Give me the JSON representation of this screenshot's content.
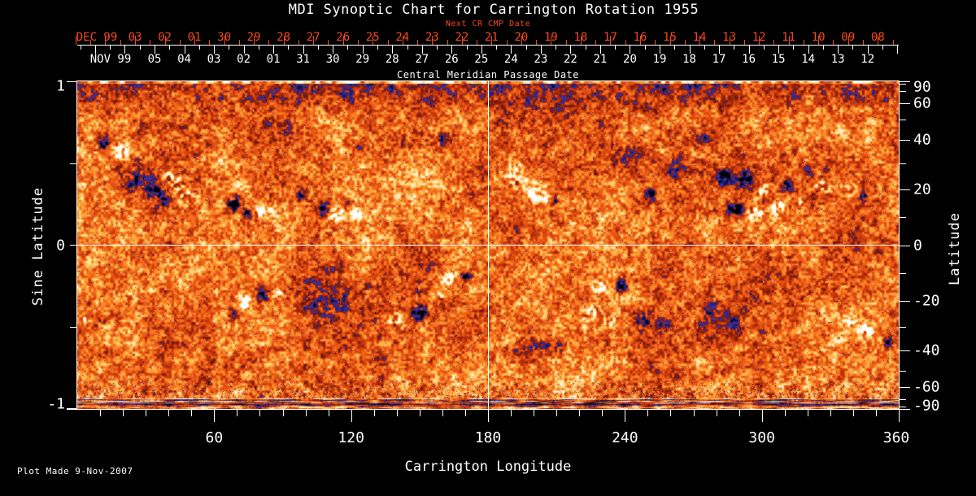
{
  "title": "MDI Synoptic Chart for Carrington Rotation 1955",
  "top_axis": {
    "next_cr_label": "Next CR CMP Date",
    "axis_label": "Central Meridian Passage Date",
    "next_cr": {
      "month_label": "DEC 99",
      "day_labels": [
        "03",
        "02",
        "01",
        "30",
        "29",
        "28",
        "27",
        "26",
        "25",
        "24",
        "23",
        "22",
        "21",
        "20",
        "19",
        "18",
        "17",
        "16",
        "15",
        "14",
        "13",
        "12",
        "11",
        "10",
        "09",
        "08"
      ]
    },
    "cmp": {
      "month_label": "NOV 99",
      "day_labels": [
        "05",
        "04",
        "03",
        "02",
        "01",
        "31",
        "30",
        "29",
        "28",
        "27",
        "26",
        "25",
        "24",
        "23",
        "22",
        "21",
        "20",
        "19",
        "18",
        "17",
        "16",
        "15",
        "14",
        "13",
        "12"
      ]
    }
  },
  "x_axis": {
    "label": "Carrington Longitude",
    "major_tick_labels": [
      "60",
      "120",
      "180",
      "240",
      "300",
      "360"
    ]
  },
  "y_axis_left": {
    "label": "Sine Latitude",
    "labeled_ticks": [
      1,
      0,
      -1
    ],
    "tick_step": 0.25
  },
  "y_axis_right": {
    "label": "Latitude",
    "labeled_ticks": [
      90,
      60,
      40,
      20,
      0,
      -20,
      -40,
      -60,
      -90
    ],
    "minor_ticks": [
      80,
      70,
      50,
      30,
      10,
      -10,
      -30,
      -50,
      -70,
      -80
    ]
  },
  "footer": {
    "plot_made": "Plot Made  9-Nov-2007"
  },
  "colors": {
    "background": "#000000",
    "text": "#ffffff",
    "accent_red": "#f8481c",
    "frame": "#ffffff",
    "grid": "#ffffff"
  },
  "chart_data": {
    "type": "heatmap",
    "subtype": "solar magnetogram synoptic map",
    "title": "MDI Synoptic Chart for Carrington Rotation 1955",
    "x": {
      "label": "Carrington Longitude",
      "range": [
        0,
        360
      ],
      "major_ticks": [
        60,
        120,
        180,
        240,
        300,
        360
      ],
      "minor_tick_step": 10
    },
    "y": {
      "label": "Sine Latitude",
      "range": [
        1,
        -1
      ],
      "labeled_ticks": [
        1,
        0,
        -1
      ],
      "tick_step": 0.25
    },
    "y_secondary": {
      "label": "Latitude",
      "labeled_ticks": [
        90,
        60,
        40,
        20,
        0,
        -20,
        -40,
        -60,
        -90
      ],
      "minor_ticks": [
        80,
        70,
        50,
        30,
        10,
        -10,
        -30,
        -50,
        -70,
        -80
      ]
    },
    "grid_lines": {
      "vertical_at_longitude": [
        180
      ],
      "horizontal_at_sine_latitude": [
        0
      ]
    },
    "legend_position": "none",
    "palette": {
      "quiet_sun": "#dc4a10",
      "bright_orange": "#f86820",
      "plage_yellow": "#ffc850",
      "strong_positive": "#ffffff",
      "weak_negative": "#28288c",
      "strong_negative": "#000000"
    },
    "active_regions_format": "[longitude_deg, sine_latitude, radius_deg, amplitude(+bright/-dark), optional_radius_sinlat]",
    "active_regions": [
      [
        11.4,
        0.62,
        3.6,
        -1.5
      ],
      [
        19.6,
        0.58,
        4.0,
        1.9
      ],
      [
        25.7,
        0.5,
        2.6,
        -1.2
      ],
      [
        24.9,
        0.4,
        6.4,
        -1.0
      ],
      [
        33.9,
        0.34,
        5.0,
        -1.3
      ],
      [
        41.0,
        0.4,
        5.7,
        1.8
      ],
      [
        46.7,
        0.3,
        3.9,
        1.5
      ],
      [
        37.4,
        0.27,
        3.0,
        -1.1
      ],
      [
        68.8,
        0.25,
        4.3,
        -1.8
      ],
      [
        74.1,
        0.19,
        2.9,
        -1.4
      ],
      [
        80.2,
        0.2,
        3.6,
        1.7
      ],
      [
        85.2,
        0.23,
        2.5,
        1.3
      ],
      [
        98.0,
        0.3,
        3.6,
        -1.1
      ],
      [
        107.3,
        0.22,
        4.3,
        -1.6
      ],
      [
        113.0,
        0.19,
        3.6,
        1.6
      ],
      [
        118.0,
        0.25,
        3.2,
        -1.3
      ],
      [
        122.3,
        0.19,
        2.9,
        1.4
      ],
      [
        124.8,
        0.61,
        2.5,
        -0.9
      ],
      [
        160.4,
        0.66,
        3.2,
        -0.8
      ],
      [
        215.6,
        0.35,
        1.8,
        -0.9
      ],
      [
        191.4,
        0.42,
        7.1,
        0.9
      ],
      [
        200.7,
        0.32,
        5.0,
        1.2
      ],
      [
        208.9,
        0.27,
        2.1,
        -1.5
      ],
      [
        204.6,
        0.28,
        1.8,
        1.6
      ],
      [
        251.3,
        0.31,
        2.5,
        -1.6
      ],
      [
        255.9,
        0.3,
        2.5,
        1.7
      ],
      [
        283.4,
        0.42,
        4.3,
        -1.5
      ],
      [
        292.6,
        0.39,
        4.6,
        -1.7
      ],
      [
        300.4,
        0.33,
        3.9,
        1.7
      ],
      [
        288.0,
        0.22,
        4.6,
        -1.8
      ],
      [
        296.2,
        0.2,
        3.9,
        1.8
      ],
      [
        306.9,
        0.23,
        3.9,
        1.6
      ],
      [
        310.4,
        0.37,
        3.2,
        -1.3
      ],
      [
        317.6,
        0.25,
        2.9,
        1.2
      ],
      [
        326.8,
        0.37,
        5.7,
        0.85
      ],
      [
        337.9,
        0.34,
        3.6,
        0.8
      ],
      [
        344.7,
        0.3,
        2.9,
        -1.1
      ],
      [
        262.0,
        0.47,
        8.0,
        -0.5,
        0.07
      ],
      [
        90.9,
        0.69,
        21.0,
        -0.45,
        0.11
      ],
      [
        151.5,
        0.64,
        18.0,
        -0.4,
        0.1
      ],
      [
        240.6,
        0.56,
        14.0,
        -0.45,
        0.09
      ],
      [
        275.5,
        0.64,
        10.0,
        -0.4,
        0.08
      ],
      [
        126.5,
        0.59,
        7.0,
        -0.4,
        0.06
      ],
      [
        20.0,
        0.66,
        16.0,
        -0.35,
        0.1
      ],
      [
        55.0,
        0.62,
        12.0,
        -0.3,
        0.08
      ],
      [
        3.6,
        -0.44,
        2.5,
        1.2
      ],
      [
        73.1,
        -0.34,
        3.9,
        1.7
      ],
      [
        81.3,
        -0.3,
        3.6,
        -1.7
      ],
      [
        88.4,
        -0.29,
        2.9,
        1.3
      ],
      [
        68.1,
        -0.42,
        2.9,
        -1.0
      ],
      [
        108.7,
        -0.37,
        14.0,
        -0.55,
        0.17
      ],
      [
        139.7,
        -0.47,
        4.3,
        1.5
      ],
      [
        149.3,
        -0.41,
        4.6,
        -1.8
      ],
      [
        161.8,
        -0.2,
        3.9,
        1.5
      ],
      [
        170.4,
        -0.19,
        3.2,
        -1.5
      ],
      [
        159.0,
        -0.32,
        2.9,
        1.1
      ],
      [
        228.8,
        -0.25,
        3.6,
        1.6
      ],
      [
        238.4,
        -0.25,
        3.6,
        -1.7
      ],
      [
        225.3,
        -0.42,
        4.3,
        1.2
      ],
      [
        232.8,
        -0.47,
        2.9,
        1.0
      ],
      [
        248.1,
        -0.47,
        4.6,
        -1.2
      ],
      [
        257.0,
        -0.49,
        3.6,
        -1.0
      ],
      [
        204.2,
        -0.62,
        12.5,
        -0.8,
        0.06
      ],
      [
        190.3,
        -0.65,
        7.8,
        -0.7,
        0.045
      ],
      [
        15.0,
        -0.65,
        8.0,
        -0.5,
        0.05
      ],
      [
        278.7,
        -0.4,
        6.4,
        -0.6,
        0.08
      ],
      [
        287.3,
        -0.47,
        3.6,
        -0.8
      ],
      [
        345.4,
        -0.52,
        4.3,
        1.6
      ],
      [
        355.0,
        -0.59,
        2.9,
        -1.3
      ],
      [
        338.9,
        -0.47,
        3.6,
        0.9
      ],
      [
        332.9,
        -0.57,
        3.9,
        0.7
      ]
    ]
  }
}
